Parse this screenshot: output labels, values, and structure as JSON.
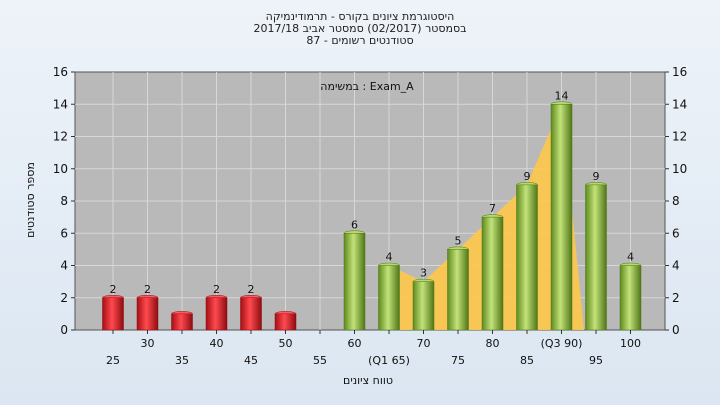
{
  "chart_data": {
    "type": "bar",
    "title_lines": [
      "היסטוגרמת ציונים בקורס - תרמודינמיקה",
      "בסמסטר  (02/2017)  סמסטר אביב 2017/18",
      "סטודנטים רשומים - 87"
    ],
    "annotation": "במשימה : Exam_A",
    "xlabel": "טווח ציונים",
    "ylabel": "מספר סטודנטים",
    "ylim": [
      0,
      16
    ],
    "yticks": [
      0,
      2,
      4,
      6,
      8,
      10,
      12,
      14,
      16
    ],
    "categories": [
      "25",
      "30",
      "35",
      "40",
      "45",
      "50",
      "55",
      "60",
      "65",
      "70",
      "75",
      "80",
      "85",
      "90",
      "95",
      "100"
    ],
    "tick_labels": [
      "25",
      "30",
      "35",
      "40",
      "45",
      "50",
      "55",
      "60",
      "(Q1 65)",
      "70",
      "75",
      "80",
      "85",
      "(Q3 90)",
      "95",
      "100"
    ],
    "values": [
      2,
      2,
      1,
      2,
      2,
      1,
      0,
      6,
      4,
      3,
      5,
      7,
      9,
      14,
      9,
      4
    ],
    "data_labels": [
      "2",
      "2",
      "",
      "2",
      "2",
      "",
      "",
      "6",
      "4",
      "3",
      "5",
      "7",
      "9",
      "14",
      "9",
      "4"
    ],
    "fail_color": "#e0262c",
    "pass_color": "#8cbf3c",
    "band_color": "#ffc84a",
    "plot_bg": "#b9b9b9",
    "grid": true,
    "legend": "none"
  }
}
